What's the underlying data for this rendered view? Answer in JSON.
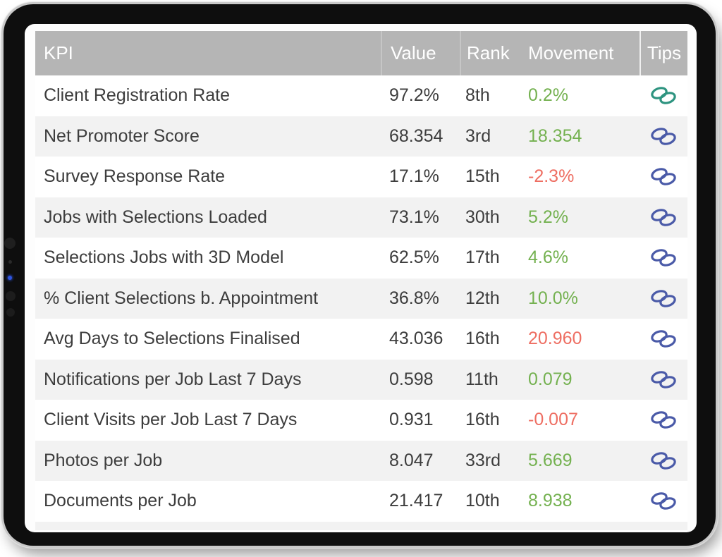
{
  "table": {
    "columns": [
      "KPI",
      "Value",
      "Rank",
      "Movement",
      "Tips"
    ],
    "rows": [
      {
        "kpi": "Client Registration Rate",
        "value": "97.2%",
        "rank": "8th",
        "movement": "0.2%",
        "movement_color": "green",
        "icon": "link-icon",
        "icon_color": "teal"
      },
      {
        "kpi": "Net Promoter Score",
        "value": "68.354",
        "rank": "3rd",
        "movement": "18.354",
        "movement_color": "green",
        "icon": "link-icon",
        "icon_color": "blue"
      },
      {
        "kpi": "Survey Response Rate",
        "value": "17.1%",
        "rank": "15th",
        "movement": "-2.3%",
        "movement_color": "red",
        "icon": "link-icon",
        "icon_color": "blue"
      },
      {
        "kpi": "Jobs with Selections Loaded",
        "value": "73.1%",
        "rank": "30th",
        "movement": "5.2%",
        "movement_color": "green",
        "icon": "link-icon",
        "icon_color": "blue"
      },
      {
        "kpi": "Selections Jobs with 3D Model",
        "value": "62.5%",
        "rank": "17th",
        "movement": "4.6%",
        "movement_color": "green",
        "icon": "link-icon",
        "icon_color": "blue"
      },
      {
        "kpi": "% Client Selections b. Appointment",
        "value": "36.8%",
        "rank": "12th",
        "movement": "10.0%",
        "movement_color": "green",
        "icon": "link-icon",
        "icon_color": "blue"
      },
      {
        "kpi": "Avg Days to Selections Finalised",
        "value": "43.036",
        "rank": "16th",
        "movement": "20.960",
        "movement_color": "red",
        "icon": "link-icon",
        "icon_color": "blue"
      },
      {
        "kpi": "Notifications per Job Last 7 Days",
        "value": "0.598",
        "rank": "11th",
        "movement": "0.079",
        "movement_color": "green",
        "icon": "link-icon",
        "icon_color": "blue"
      },
      {
        "kpi": "Client Visits per Job Last 7 Days",
        "value": "0.931",
        "rank": "16th",
        "movement": "-0.007",
        "movement_color": "red",
        "icon": "link-icon",
        "icon_color": "blue"
      },
      {
        "kpi": "Photos per Job",
        "value": "8.047",
        "rank": "33rd",
        "movement": "5.669",
        "movement_color": "green",
        "icon": "link-icon",
        "icon_color": "blue"
      },
      {
        "kpi": "Documents per Job",
        "value": "21.417",
        "rank": "10th",
        "movement": "8.938",
        "movement_color": "green",
        "icon": "link-icon",
        "icon_color": "blue"
      }
    ]
  },
  "colors": {
    "green": "#74B150",
    "red": "#EE6E62",
    "blue": "#4A5AA8",
    "teal": "#2E9480",
    "header_bg": "#B5B5B5",
    "header_text": "#FFFFFF",
    "row_alt_bg": "#F2F2F2",
    "row_text": "#3D3D3D"
  }
}
